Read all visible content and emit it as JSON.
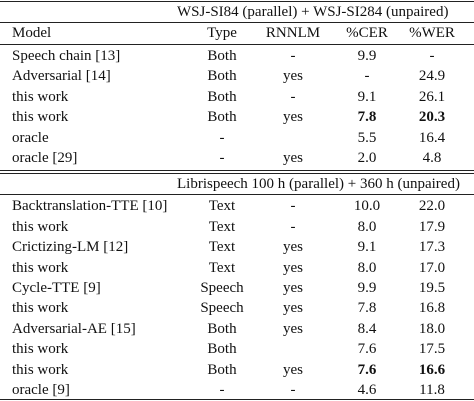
{
  "sections": [
    {
      "title": "WSJ-SI84 (parallel) + WSJ-SI284 (unpaired)",
      "columns": [
        "Model",
        "Type",
        "RNNLM",
        "%CER",
        "%WER"
      ],
      "rows": [
        [
          "Speech chain [13]",
          "Both",
          "-",
          "9.9",
          "-"
        ],
        [
          "Adversarial [14]",
          "Both",
          "yes",
          "-",
          "24.9"
        ],
        [
          "this work",
          "Both",
          "-",
          "9.1",
          "26.1"
        ],
        [
          "this work",
          "Both",
          "yes",
          "7.8",
          "20.3"
        ],
        [
          "oracle",
          "-",
          null,
          "5.5",
          "16.4"
        ],
        [
          "oracle [29]",
          "-",
          "yes",
          "2.0",
          "4.8"
        ]
      ],
      "bold": [
        [
          3,
          3
        ],
        [
          3,
          4
        ]
      ]
    },
    {
      "title": "Librispeech 100 h (parallel) + 360 h (unpaired)",
      "rows": [
        [
          "Backtranslation-TTE [10]",
          "Text",
          "-",
          "10.0",
          "22.0"
        ],
        [
          "this work",
          "Text",
          "-",
          "8.0",
          "17.9"
        ],
        [
          "Crictizing-LM [12]",
          "Text",
          "yes",
          "9.1",
          "17.3"
        ],
        [
          "this work",
          "Text",
          "yes",
          "8.0",
          "17.0"
        ],
        [
          "Cycle-TTE [9]",
          "Speech",
          "yes",
          "9.9",
          "19.5"
        ],
        [
          "this work",
          "Speech",
          "yes",
          "7.8",
          "16.8"
        ],
        [
          "Adversarial-AE [15]",
          "Both",
          "yes",
          "8.4",
          "18.0"
        ],
        [
          "this work",
          "Both",
          null,
          "7.6",
          "17.5"
        ],
        [
          "this work",
          "Both",
          "yes",
          "7.6",
          "16.6"
        ],
        [
          "oracle [9]",
          "-",
          "-",
          "4.6",
          "11.8"
        ]
      ],
      "bold": [
        [
          8,
          3
        ],
        [
          8,
          4
        ]
      ]
    }
  ]
}
